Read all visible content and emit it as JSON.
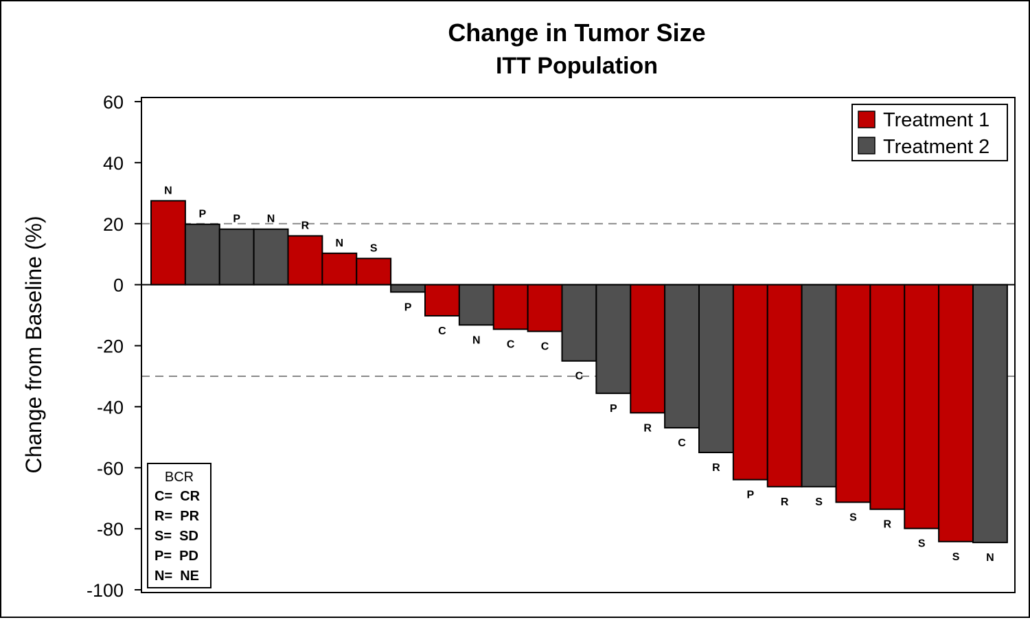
{
  "chart_data": {
    "type": "bar",
    "title": "Change in Tumor Size",
    "subtitle": "ITT Population",
    "xlabel": "",
    "ylabel": "Change from Baseline (%)",
    "ylim": [
      -100,
      60
    ],
    "yticks": [
      "60",
      "40",
      "20",
      "0",
      "-20",
      "-40",
      "-60",
      "-80",
      "-100"
    ],
    "reference_lines": [
      20,
      -30
    ],
    "grid": false,
    "legend": {
      "placement": "top-right",
      "entries": [
        {
          "label": "Treatment 1",
          "color": "#C00000"
        },
        {
          "label": "Treatment 2",
          "color": "#505050"
        }
      ]
    },
    "bars": [
      {
        "value": 27.5,
        "group": 1,
        "label": "N"
      },
      {
        "value": 19.8,
        "group": 2,
        "label": "P"
      },
      {
        "value": 18.2,
        "group": 2,
        "label": "P"
      },
      {
        "value": 18.2,
        "group": 2,
        "label": "N"
      },
      {
        "value": 16.0,
        "group": 1,
        "label": "R"
      },
      {
        "value": 10.3,
        "group": 1,
        "label": "N"
      },
      {
        "value": 8.6,
        "group": 1,
        "label": "S"
      },
      {
        "value": -2.4,
        "group": 2,
        "label": "P"
      },
      {
        "value": -10.2,
        "group": 1,
        "label": "C"
      },
      {
        "value": -13.2,
        "group": 2,
        "label": "N"
      },
      {
        "value": -14.6,
        "group": 1,
        "label": "C"
      },
      {
        "value": -15.3,
        "group": 1,
        "label": "C"
      },
      {
        "value": -25.0,
        "group": 2,
        "label": "C"
      },
      {
        "value": -35.6,
        "group": 2,
        "label": "P"
      },
      {
        "value": -42.0,
        "group": 1,
        "label": "R"
      },
      {
        "value": -46.9,
        "group": 2,
        "label": "C"
      },
      {
        "value": -55.0,
        "group": 2,
        "label": "R"
      },
      {
        "value": -63.9,
        "group": 1,
        "label": "P"
      },
      {
        "value": -66.2,
        "group": 1,
        "label": "R"
      },
      {
        "value": -66.2,
        "group": 2,
        "label": "S"
      },
      {
        "value": -71.3,
        "group": 1,
        "label": "S"
      },
      {
        "value": -73.6,
        "group": 1,
        "label": "R"
      },
      {
        "value": -79.9,
        "group": 1,
        "label": "S"
      },
      {
        "value": -84.2,
        "group": 1,
        "label": "S"
      },
      {
        "value": -84.5,
        "group": 2,
        "label": "N"
      }
    ],
    "inset_legend": {
      "title": "BCR",
      "items": [
        "C=  CR",
        "R=  PR",
        "S=  SD",
        "P=  PD",
        "N=  NE"
      ]
    }
  }
}
